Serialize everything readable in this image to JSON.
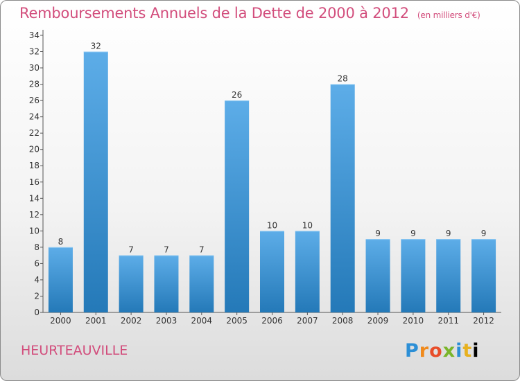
{
  "header": {
    "title": "Remboursements Annuels de la Dette de 2000 à 2012",
    "unit": "(en milliers d'€)"
  },
  "footer": {
    "commune": "HEURTEAUVILLE",
    "logo_letters": [
      "P",
      "r",
      "o",
      "x",
      "i",
      "t",
      "i"
    ]
  },
  "colors": {
    "accent": "#d24d7c",
    "bar_light": "#5dade8",
    "bar_dark": "#2479b8"
  },
  "chart_data": {
    "type": "bar",
    "title": "Remboursements Annuels de la Dette de 2000 à 2012",
    "subtitle": "(en milliers d'€)",
    "categories": [
      "2000",
      "2001",
      "2002",
      "2003",
      "2004",
      "2005",
      "2006",
      "2007",
      "2008",
      "2009",
      "2010",
      "2011",
      "2012"
    ],
    "values": [
      8,
      32,
      7,
      7,
      7,
      26,
      10,
      10,
      28,
      9,
      9,
      9,
      9
    ],
    "ylim": [
      0,
      34
    ],
    "yticks": [
      0,
      2,
      4,
      6,
      8,
      10,
      12,
      14,
      16,
      18,
      20,
      22,
      24,
      26,
      28,
      30,
      32,
      34
    ],
    "grid": false,
    "legend": "none"
  }
}
